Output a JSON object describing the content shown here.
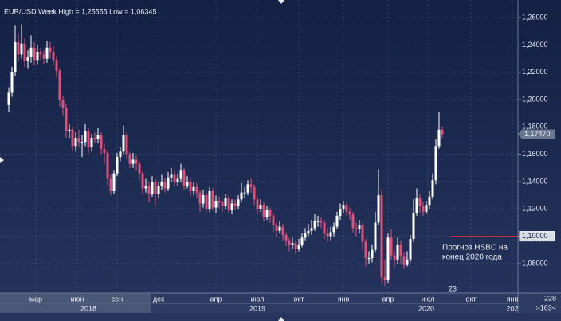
{
  "chart_data": {
    "type": "candlestick",
    "title": "EUR/USD Week High = 1,25555 Low = 1,06345",
    "open": [
      1.196,
      1.205,
      1.22,
      1.242,
      1.233,
      1.241,
      1.228,
      1.231,
      1.238,
      1.229,
      1.235,
      1.233,
      1.23,
      1.238,
      1.235,
      1.229,
      1.221,
      1.2,
      1.194,
      1.177,
      1.178,
      1.166,
      1.172,
      1.169,
      1.169,
      1.177,
      1.165,
      1.172,
      1.171,
      1.174,
      1.164,
      1.161,
      1.142,
      1.133,
      1.146,
      1.158,
      1.162,
      1.174,
      1.16,
      1.153,
      1.156,
      1.153,
      1.146,
      1.135,
      1.137,
      1.131,
      1.14,
      1.131,
      1.137,
      1.14,
      1.135,
      1.143,
      1.145,
      1.14,
      1.142,
      1.148,
      1.137,
      1.14,
      1.133,
      1.136,
      1.132,
      1.124,
      1.13,
      1.12,
      1.133,
      1.121,
      1.126,
      1.125,
      1.122,
      1.128,
      1.119,
      1.124,
      1.122,
      1.127,
      1.132,
      1.132,
      1.138,
      1.136,
      1.127,
      1.12,
      1.123,
      1.114,
      1.119,
      1.115,
      1.108,
      1.104,
      1.107,
      1.101,
      1.097,
      1.094,
      1.095,
      1.091,
      1.094,
      1.099,
      1.102,
      1.104,
      1.106,
      1.111,
      1.111,
      1.11,
      1.102,
      1.1,
      1.103,
      1.107,
      1.115,
      1.12,
      1.123,
      1.118,
      1.116,
      1.106,
      1.105,
      1.108,
      1.096,
      1.084,
      1.084,
      1.09,
      1.11,
      1.13,
      1.07,
      1.068,
      1.099,
      1.086,
      1.083,
      1.094,
      1.085,
      1.079,
      1.083,
      1.098,
      1.117,
      1.128,
      1.122,
      1.118,
      1.123,
      1.129,
      1.141,
      1.166,
      1.178
    ],
    "high": [
      1.209,
      1.224,
      1.254,
      1.248,
      1.255,
      1.245,
      1.236,
      1.247,
      1.242,
      1.24,
      1.238,
      1.236,
      1.243,
      1.242,
      1.239,
      1.232,
      1.223,
      1.203,
      1.197,
      1.182,
      1.18,
      1.176,
      1.178,
      1.174,
      1.182,
      1.179,
      1.175,
      1.176,
      1.179,
      1.176,
      1.168,
      1.163,
      1.145,
      1.148,
      1.161,
      1.165,
      1.181,
      1.176,
      1.162,
      1.161,
      1.159,
      1.155,
      1.148,
      1.142,
      1.14,
      1.144,
      1.142,
      1.14,
      1.145,
      1.143,
      1.147,
      1.15,
      1.148,
      1.146,
      1.153,
      1.15,
      1.144,
      1.142,
      1.14,
      1.139,
      1.134,
      1.134,
      1.132,
      1.136,
      1.135,
      1.13,
      1.129,
      1.127,
      1.131,
      1.13,
      1.127,
      1.127,
      1.13,
      1.139,
      1.136,
      1.141,
      1.142,
      1.138,
      1.129,
      1.127,
      1.125,
      1.122,
      1.121,
      1.117,
      1.11,
      1.111,
      1.109,
      1.103,
      1.099,
      1.099,
      1.097,
      1.098,
      1.102,
      1.106,
      1.109,
      1.112,
      1.116,
      1.115,
      1.114,
      1.112,
      1.106,
      1.107,
      1.11,
      1.118,
      1.124,
      1.126,
      1.125,
      1.121,
      1.118,
      1.11,
      1.112,
      1.11,
      1.098,
      1.089,
      1.094,
      1.118,
      1.149,
      1.134,
      1.083,
      1.102,
      1.105,
      1.09,
      1.099,
      1.097,
      1.088,
      1.089,
      1.101,
      1.127,
      1.135,
      1.131,
      1.125,
      1.126,
      1.133,
      1.146,
      1.171,
      1.191,
      1.18
    ],
    "low": [
      1.191,
      1.202,
      1.217,
      1.228,
      1.23,
      1.224,
      1.223,
      1.227,
      1.225,
      1.226,
      1.229,
      1.226,
      1.227,
      1.23,
      1.225,
      1.216,
      1.195,
      1.188,
      1.172,
      1.172,
      1.162,
      1.162,
      1.165,
      1.158,
      1.166,
      1.161,
      1.162,
      1.168,
      1.168,
      1.16,
      1.153,
      1.137,
      1.13,
      1.131,
      1.144,
      1.155,
      1.16,
      1.157,
      1.15,
      1.15,
      1.148,
      1.141,
      1.13,
      1.132,
      1.125,
      1.129,
      1.122,
      1.128,
      1.134,
      1.132,
      1.133,
      1.14,
      1.137,
      1.137,
      1.14,
      1.134,
      1.135,
      1.129,
      1.13,
      1.128,
      1.118,
      1.121,
      1.118,
      1.118,
      1.119,
      1.117,
      1.121,
      1.118,
      1.12,
      1.117,
      1.116,
      1.119,
      1.12,
      1.125,
      1.128,
      1.13,
      1.132,
      1.123,
      1.116,
      1.118,
      1.111,
      1.112,
      1.11,
      1.103,
      1.1,
      1.102,
      1.097,
      1.093,
      1.089,
      1.091,
      1.087,
      1.089,
      1.092,
      1.097,
      1.1,
      1.101,
      1.104,
      1.107,
      1.106,
      1.098,
      1.096,
      1.097,
      1.1,
      1.105,
      1.112,
      1.117,
      1.115,
      1.112,
      1.103,
      1.1,
      1.102,
      1.09,
      1.078,
      1.08,
      1.081,
      1.088,
      1.108,
      1.066,
      1.0636,
      1.066,
      1.083,
      1.077,
      1.08,
      1.08,
      1.076,
      1.078,
      1.081,
      1.096,
      1.115,
      1.117,
      1.115,
      1.116,
      1.12,
      1.127,
      1.138,
      1.164,
      1.172
    ],
    "close": [
      1.205,
      1.22,
      1.242,
      1.233,
      1.241,
      1.228,
      1.231,
      1.238,
      1.229,
      1.235,
      1.233,
      1.23,
      1.238,
      1.235,
      1.229,
      1.221,
      1.2,
      1.194,
      1.177,
      1.178,
      1.166,
      1.172,
      1.169,
      1.169,
      1.177,
      1.165,
      1.172,
      1.171,
      1.174,
      1.164,
      1.161,
      1.142,
      1.133,
      1.146,
      1.158,
      1.162,
      1.174,
      1.16,
      1.153,
      1.156,
      1.153,
      1.146,
      1.135,
      1.137,
      1.131,
      1.14,
      1.131,
      1.137,
      1.14,
      1.135,
      1.143,
      1.145,
      1.14,
      1.142,
      1.148,
      1.137,
      1.14,
      1.133,
      1.136,
      1.132,
      1.124,
      1.13,
      1.12,
      1.133,
      1.121,
      1.126,
      1.125,
      1.122,
      1.128,
      1.119,
      1.124,
      1.122,
      1.127,
      1.132,
      1.132,
      1.138,
      1.136,
      1.127,
      1.12,
      1.123,
      1.114,
      1.119,
      1.115,
      1.108,
      1.104,
      1.107,
      1.101,
      1.097,
      1.094,
      1.095,
      1.091,
      1.094,
      1.099,
      1.102,
      1.104,
      1.106,
      1.111,
      1.111,
      1.11,
      1.102,
      1.1,
      1.103,
      1.107,
      1.115,
      1.12,
      1.123,
      1.118,
      1.116,
      1.106,
      1.105,
      1.108,
      1.096,
      1.084,
      1.084,
      1.09,
      1.11,
      1.13,
      1.07,
      1.068,
      1.099,
      1.086,
      1.083,
      1.094,
      1.085,
      1.079,
      1.083,
      1.098,
      1.117,
      1.128,
      1.122,
      1.118,
      1.123,
      1.129,
      1.141,
      1.166,
      1.178,
      1.1747
    ],
    "up_color": "#ffffff",
    "down_color": "#e0507a",
    "ylim": [
      1.0584,
      1.2682
    ],
    "yticks": [
      {
        "value": 1.08,
        "label": "1,08000"
      },
      {
        "value": 1.1,
        "label": "1,10000"
      },
      {
        "value": 1.12,
        "label": "1,12000"
      },
      {
        "value": 1.14,
        "label": "1,14000"
      },
      {
        "value": 1.16,
        "label": "1,16000"
      },
      {
        "value": 1.18,
        "label": "1,18000"
      },
      {
        "value": 1.2,
        "label": "1,20000"
      },
      {
        "value": 1.22,
        "label": "1,22000"
      },
      {
        "value": 1.24,
        "label": "1,24000"
      },
      {
        "value": 1.26,
        "label": "1,26000"
      }
    ],
    "xlim": [
      -2.75,
      159.75
    ],
    "xticks": [
      {
        "value": 8.5,
        "label": "мар"
      },
      {
        "value": 21.5,
        "label": "июн"
      },
      {
        "value": 34,
        "label": "сен"
      },
      {
        "value": 47,
        "label": "дек"
      },
      {
        "value": 65,
        "label": "апр"
      },
      {
        "value": 78,
        "label": "июл"
      },
      {
        "value": 91,
        "label": "окт"
      },
      {
        "value": 105,
        "label": "янв"
      },
      {
        "value": 119,
        "label": "апр"
      },
      {
        "value": 131.5,
        "label": "июл"
      },
      {
        "value": 145,
        "label": "окт"
      },
      {
        "value": 158,
        "label": "янв"
      }
    ],
    "years": [
      {
        "value": 25,
        "label": "2018"
      },
      {
        "value": 78,
        "label": "2019"
      },
      {
        "value": 131,
        "label": "2020"
      },
      {
        "value": 158,
        "label": "202"
      }
    ],
    "grid": true,
    "last_price": {
      "value": 1.1747,
      "label": "1,17470"
    },
    "forecast": {
      "value": 1.1,
      "label": "1,10000",
      "color": "#c0303a",
      "text": [
        "Прогноз HSBC на",
        "конец  2020 года"
      ]
    },
    "marker_text": "23",
    "corner": [
      "228",
      ">163<"
    ]
  }
}
